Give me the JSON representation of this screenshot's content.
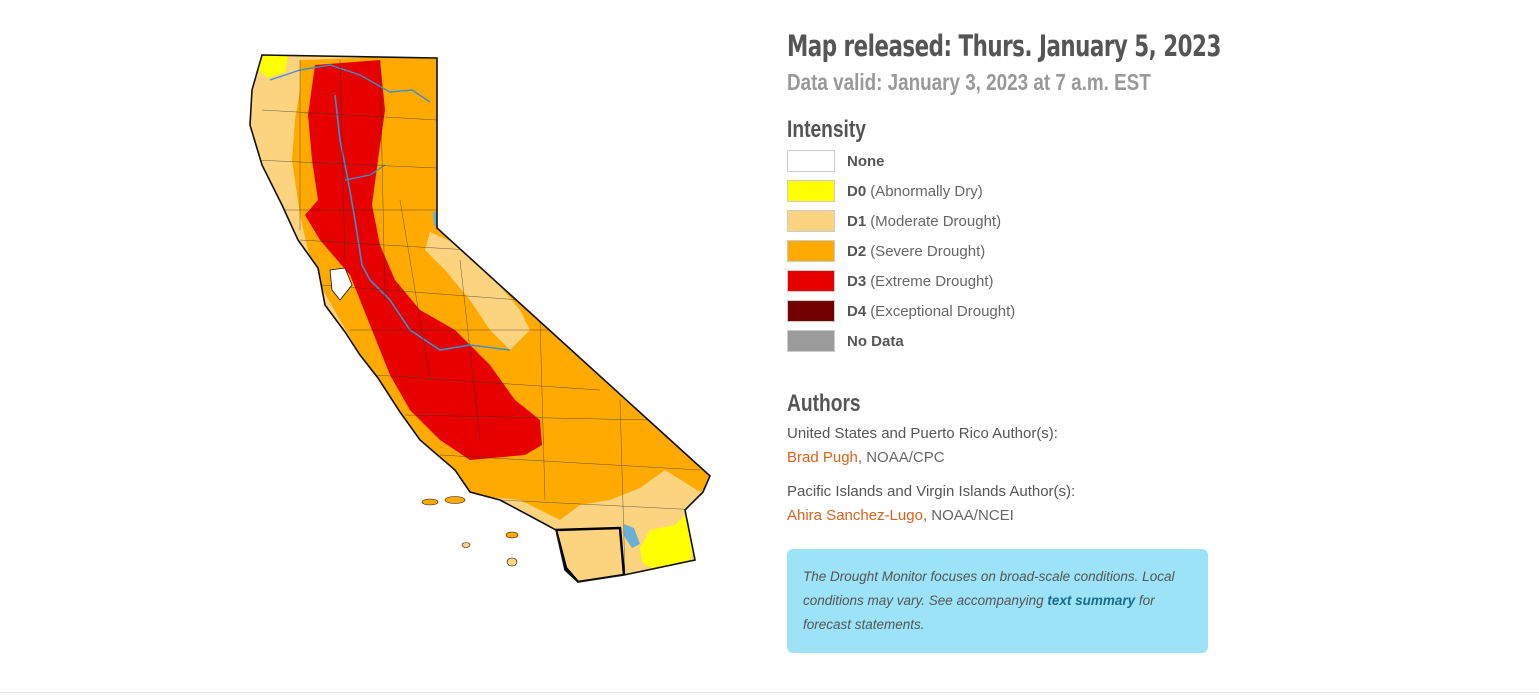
{
  "header": {
    "released": "Map released: Thurs. January 5, 2023",
    "valid": "Data valid: January 3, 2023 at 7 a.m. EST"
  },
  "intensity": {
    "title": "Intensity",
    "items": [
      {
        "code": "None",
        "desc": "",
        "color": "#ffffff"
      },
      {
        "code": "D0",
        "desc": "(Abnormally Dry)",
        "color": "#ffff00"
      },
      {
        "code": "D1",
        "desc": "(Moderate Drought)",
        "color": "#fcd37f"
      },
      {
        "code": "D2",
        "desc": "(Severe Drought)",
        "color": "#ffaa00"
      },
      {
        "code": "D3",
        "desc": "(Extreme Drought)",
        "color": "#e60000"
      },
      {
        "code": "D4",
        "desc": "(Exceptional Drought)",
        "color": "#730000"
      },
      {
        "code": "No Data",
        "desc": "",
        "color": "#9b9b9b"
      }
    ]
  },
  "authors": {
    "title": "Authors",
    "group1_label": "United States and Puerto Rico Author(s):",
    "group1_name": "Brad Pugh",
    "group1_org": ", NOAA/CPC",
    "group2_label": "Pacific Islands and Virgin Islands Author(s):",
    "group2_name": "Ahira Sanchez-Lugo",
    "group2_org": ", NOAA/NCEI"
  },
  "note": {
    "text_before": "The Drought Monitor focuses on broad-scale conditions. Local conditions may vary. See accompanying ",
    "link": "text summary",
    "text_after": " for forecast statements."
  },
  "map": {
    "region": "California",
    "colors": {
      "d0": "#ffff00",
      "d1": "#fcd37f",
      "d2": "#ffaa00",
      "d3": "#e60000",
      "water": "#6baed6"
    }
  }
}
